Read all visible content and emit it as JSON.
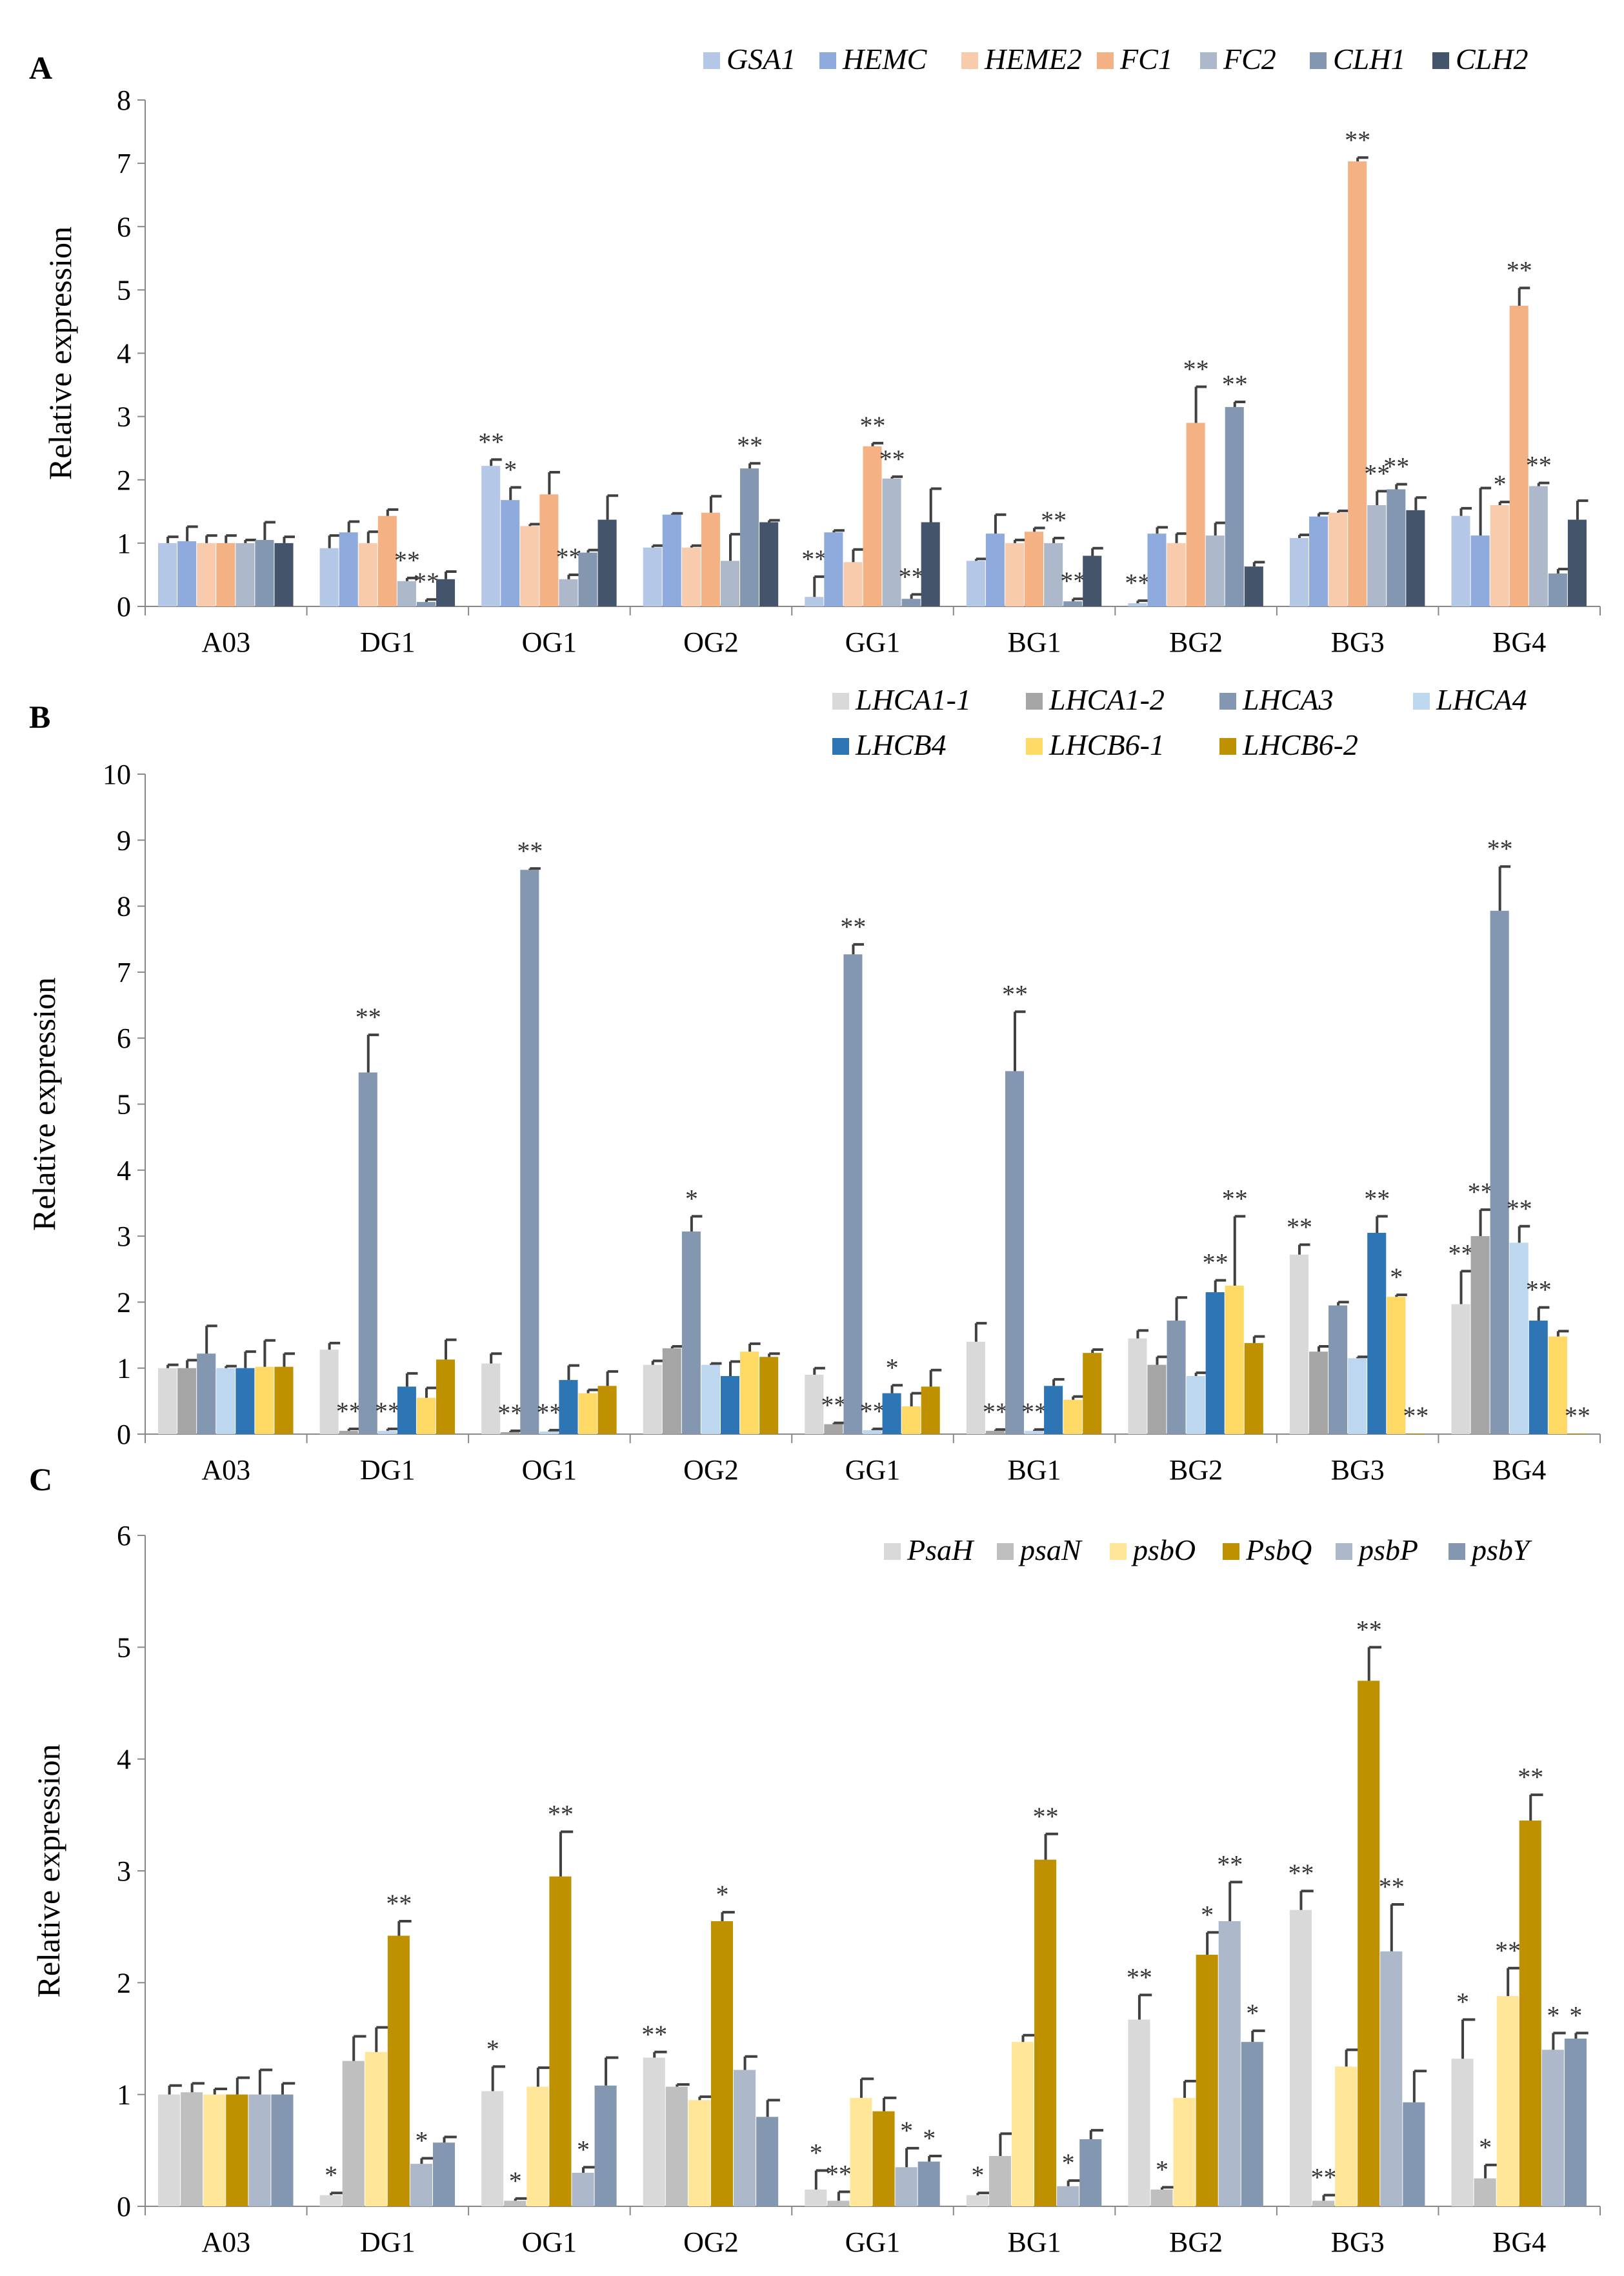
{
  "chart_data": [
    {
      "type": "bar",
      "panel": "A",
      "ylabel": "Relative expression",
      "ylim": [
        0,
        8
      ],
      "yticks": [
        0,
        1,
        2,
        3,
        4,
        5,
        6,
        7,
        8
      ],
      "categories": [
        "A03",
        "DG1",
        "OG1",
        "OG2",
        "GG1",
        "BG1",
        "BG2",
        "BG3",
        "BG4"
      ],
      "series": [
        {
          "name": "GSA1",
          "color": "#b4c7e7",
          "values": [
            1.0,
            0.92,
            2.22,
            0.93,
            0.15,
            0.72,
            0.05,
            1.08,
            1.43
          ],
          "errors": [
            0.1,
            0.2,
            0.1,
            0.03,
            0.32,
            0.03,
            0.04,
            0.05,
            0.12
          ],
          "sig": [
            "",
            "",
            "**",
            "",
            "**",
            "",
            "**",
            "",
            ""
          ]
        },
        {
          "name": "HEMC",
          "color": "#8faadc",
          "values": [
            1.03,
            1.17,
            1.68,
            1.45,
            1.17,
            1.15,
            1.15,
            1.42,
            1.12
          ],
          "errors": [
            0.23,
            0.17,
            0.2,
            0.02,
            0.03,
            0.3,
            0.1,
            0.05,
            0.75
          ],
          "sig": [
            "",
            "",
            "*",
            "",
            "",
            "",
            "",
            "",
            ""
          ]
        },
        {
          "name": "HEME2",
          "color": "#f8cbad",
          "values": [
            1.0,
            1.0,
            1.27,
            0.93,
            0.7,
            1.0,
            1.0,
            1.48,
            1.6
          ],
          "errors": [
            0.12,
            0.18,
            0.03,
            0.03,
            0.2,
            0.05,
            0.15,
            0.03,
            0.05
          ],
          "sig": [
            "",
            "",
            "",
            "",
            "",
            "",
            "",
            "",
            "*"
          ]
        },
        {
          "name": "FC1",
          "color": "#f4b183",
          "values": [
            1.0,
            1.43,
            1.77,
            1.48,
            2.53,
            1.18,
            2.9,
            7.03,
            4.75
          ],
          "errors": [
            0.12,
            0.1,
            0.35,
            0.26,
            0.05,
            0.06,
            0.57,
            0.06,
            0.28
          ],
          "sig": [
            "",
            "",
            "",
            "",
            "**",
            "",
            "**",
            "**",
            "**"
          ]
        },
        {
          "name": "FC2",
          "color": "#adb9ca",
          "values": [
            1.0,
            0.4,
            0.43,
            0.72,
            2.02,
            1.0,
            1.12,
            1.6,
            1.9
          ],
          "errors": [
            0.05,
            0.05,
            0.07,
            0.42,
            0.03,
            0.08,
            0.2,
            0.22,
            0.05
          ],
          "sig": [
            "",
            "**",
            "**",
            "",
            "**",
            "**",
            "",
            "**",
            "**"
          ]
        },
        {
          "name": "CLH1",
          "color": "#8497b0",
          "values": [
            1.05,
            0.07,
            0.85,
            2.18,
            0.12,
            0.08,
            3.15,
            1.85,
            0.52
          ],
          "errors": [
            0.28,
            0.04,
            0.04,
            0.08,
            0.07,
            0.04,
            0.08,
            0.08,
            0.07
          ],
          "sig": [
            "",
            "**",
            "",
            "**",
            "**",
            "**",
            "**",
            "**",
            ""
          ]
        },
        {
          "name": "CLH2",
          "color": "#44546a",
          "values": [
            1.0,
            0.43,
            1.37,
            1.33,
            1.33,
            0.8,
            0.63,
            1.52,
            1.37
          ],
          "errors": [
            0.1,
            0.12,
            0.38,
            0.03,
            0.53,
            0.12,
            0.07,
            0.2,
            0.3
          ],
          "sig": [
            "",
            "",
            "",
            "",
            "",
            "",
            "",
            "",
            ""
          ]
        }
      ]
    },
    {
      "type": "bar",
      "panel": "B",
      "ylabel": "Relative expression",
      "ylim": [
        0,
        10
      ],
      "yticks": [
        0,
        1,
        2,
        3,
        4,
        5,
        6,
        7,
        8,
        9,
        10
      ],
      "categories": [
        "A03",
        "DG1",
        "OG1",
        "OG2",
        "GG1",
        "BG1",
        "BG2",
        "BG3",
        "BG4"
      ],
      "series": [
        {
          "name": "LHCA1-1",
          "color": "#d9d9d9",
          "values": [
            1.0,
            1.28,
            1.07,
            1.05,
            0.9,
            1.4,
            1.45,
            2.72,
            1.97
          ],
          "errors": [
            0.05,
            0.1,
            0.15,
            0.06,
            0.1,
            0.28,
            0.12,
            0.15,
            0.5
          ],
          "sig": [
            "",
            "",
            "",
            "",
            "",
            "",
            "",
            "**",
            "**"
          ]
        },
        {
          "name": "LHCA1-2",
          "color": "#a5a5a5",
          "values": [
            1.0,
            0.05,
            0.03,
            1.3,
            0.15,
            0.05,
            1.05,
            1.25,
            3.0
          ],
          "errors": [
            0.12,
            0.03,
            0.02,
            0.03,
            0.02,
            0.02,
            0.12,
            0.08,
            0.4
          ],
          "sig": [
            "",
            "**",
            "**",
            "",
            "**",
            "**",
            "",
            "",
            "**"
          ]
        },
        {
          "name": "LHCA3",
          "color": "#8497b0",
          "values": [
            1.22,
            5.48,
            8.55,
            3.07,
            7.27,
            5.5,
            1.72,
            1.95,
            7.93
          ],
          "errors": [
            0.42,
            0.57,
            0.02,
            0.23,
            0.15,
            0.9,
            0.35,
            0.05,
            0.67
          ],
          "sig": [
            "",
            "**",
            "**",
            "*",
            "**",
            "**",
            "",
            "",
            "**"
          ]
        },
        {
          "name": "LHCA4",
          "color": "#bdd7ee",
          "values": [
            1.0,
            0.05,
            0.04,
            1.05,
            0.06,
            0.05,
            0.88,
            1.15,
            2.9
          ],
          "errors": [
            0.03,
            0.03,
            0.02,
            0.02,
            0.02,
            0.02,
            0.05,
            0.02,
            0.25
          ],
          "sig": [
            "",
            "**",
            "**",
            "",
            "**",
            "**",
            "",
            "",
            "**"
          ]
        },
        {
          "name": "LHCB4",
          "color": "#2e75b6",
          "values": [
            1.0,
            0.72,
            0.82,
            0.88,
            0.62,
            0.73,
            2.15,
            3.05,
            1.72
          ],
          "errors": [
            0.25,
            0.2,
            0.22,
            0.22,
            0.12,
            0.1,
            0.18,
            0.25,
            0.2
          ],
          "sig": [
            "",
            "",
            "",
            "",
            "*",
            "",
            "**",
            "**",
            "**"
          ]
        },
        {
          "name": "LHCB6-1",
          "color": "#ffd966",
          "values": [
            1.02,
            0.55,
            0.62,
            1.25,
            0.42,
            0.52,
            2.25,
            2.08,
            1.48
          ],
          "errors": [
            0.4,
            0.15,
            0.05,
            0.12,
            0.2,
            0.05,
            1.05,
            0.03,
            0.08
          ],
          "sig": [
            "",
            "",
            "",
            "",
            "",
            "",
            "**",
            "*",
            ""
          ]
        },
        {
          "name": "LHCB6-2",
          "color": "#bf9000",
          "values": [
            1.02,
            1.13,
            0.73,
            1.17,
            0.72,
            1.23,
            1.38,
            0.01,
            0.01
          ],
          "errors": [
            0.2,
            0.3,
            0.22,
            0.05,
            0.25,
            0.05,
            0.1,
            0.0,
            0.0
          ],
          "sig": [
            "",
            "",
            "",
            "",
            "",
            "",
            "",
            "**",
            "**"
          ]
        }
      ]
    },
    {
      "type": "bar",
      "panel": "C",
      "ylabel": "Relative expression",
      "ylim": [
        0,
        6
      ],
      "yticks": [
        0,
        1,
        2,
        3,
        4,
        5,
        6
      ],
      "categories": [
        "A03",
        "DG1",
        "OG1",
        "OG2",
        "GG1",
        "BG1",
        "BG2",
        "BG3",
        "BG4"
      ],
      "series": [
        {
          "name": "PsaH",
          "color": "#d9d9d9",
          "values": [
            1.0,
            0.1,
            1.03,
            1.33,
            0.15,
            0.1,
            1.67,
            2.65,
            1.32
          ],
          "errors": [
            0.08,
            0.02,
            0.22,
            0.05,
            0.17,
            0.02,
            0.22,
            0.17,
            0.35
          ],
          "sig": [
            "",
            "*",
            "*",
            "**",
            "*",
            "*",
            "**",
            "**",
            "*"
          ]
        },
        {
          "name": "psaN",
          "color": "#bfbfbf",
          "values": [
            1.02,
            1.3,
            0.05,
            1.07,
            0.05,
            0.45,
            0.15,
            0.05,
            0.25
          ],
          "errors": [
            0.08,
            0.22,
            0.02,
            0.02,
            0.08,
            0.2,
            0.02,
            0.05,
            0.12
          ],
          "sig": [
            "",
            "",
            "*",
            "",
            "**",
            "",
            "*",
            "**",
            "*"
          ]
        },
        {
          "name": "psbO",
          "color": "#ffe699",
          "values": [
            1.0,
            1.38,
            1.07,
            0.95,
            0.97,
            1.47,
            0.97,
            1.25,
            1.88
          ],
          "errors": [
            0.05,
            0.22,
            0.17,
            0.03,
            0.17,
            0.06,
            0.15,
            0.15,
            0.25
          ],
          "sig": [
            "",
            "",
            "",
            "",
            "",
            "",
            "",
            "",
            "**"
          ]
        },
        {
          "name": "PsbQ",
          "color": "#bf9000",
          "values": [
            1.0,
            2.42,
            2.95,
            2.55,
            0.85,
            3.1,
            2.25,
            4.7,
            3.45
          ],
          "errors": [
            0.15,
            0.13,
            0.4,
            0.08,
            0.12,
            0.23,
            0.2,
            0.3,
            0.23
          ],
          "sig": [
            "",
            "**",
            "**",
            "*",
            "",
            "**",
            "*",
            "**",
            "**"
          ]
        },
        {
          "name": "psbP",
          "color": "#adb9ca",
          "values": [
            1.0,
            0.38,
            0.3,
            1.22,
            0.35,
            0.18,
            2.55,
            2.28,
            1.4
          ],
          "errors": [
            0.22,
            0.05,
            0.05,
            0.12,
            0.17,
            0.05,
            0.35,
            0.42,
            0.15
          ],
          "sig": [
            "",
            "*",
            "*",
            "",
            "*",
            "*",
            "**",
            "**",
            "*"
          ]
        },
        {
          "name": "psbY",
          "color": "#8497b0",
          "values": [
            1.0,
            0.57,
            1.08,
            0.8,
            0.4,
            0.6,
            1.47,
            0.93,
            1.5
          ],
          "errors": [
            0.1,
            0.05,
            0.25,
            0.15,
            0.05,
            0.08,
            0.1,
            0.28,
            0.05
          ],
          "sig": [
            "",
            "",
            "",
            "",
            "*",
            "",
            "*",
            "",
            "*"
          ]
        }
      ]
    }
  ]
}
